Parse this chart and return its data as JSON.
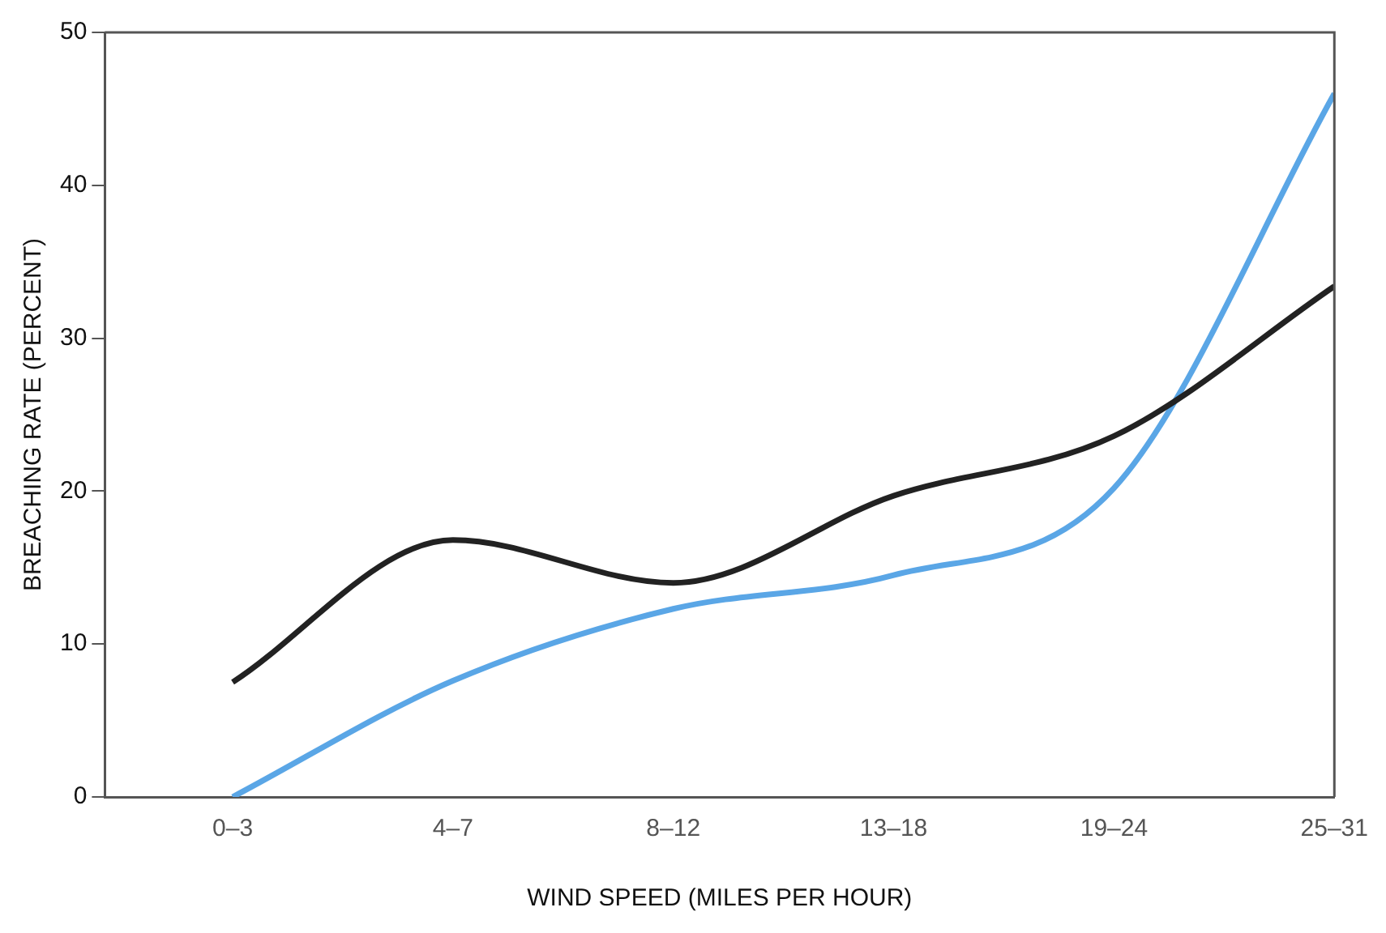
{
  "chart_data": {
    "type": "line",
    "xlabel": "WIND SPEED (MILES PER HOUR)",
    "ylabel": "BREACHING RATE (PERCENT)",
    "categories": [
      "0–3",
      "4–7",
      "8–12",
      "13–18",
      "19–24",
      "25–31"
    ],
    "series": [
      {
        "color": "#222222",
        "values": [
          7.5,
          16.8,
          14,
          19.7,
          23.6,
          33.4
        ]
      },
      {
        "color": "#5aa6e6",
        "values": [
          0,
          7.6,
          12.3,
          14.5,
          20.2,
          46
        ]
      }
    ],
    "ylim": [
      0,
      50
    ],
    "yticks": [
      0,
      10,
      20,
      30,
      40,
      50
    ],
    "grid": false,
    "legend": false,
    "marker": "none",
    "line_style": "solid"
  }
}
